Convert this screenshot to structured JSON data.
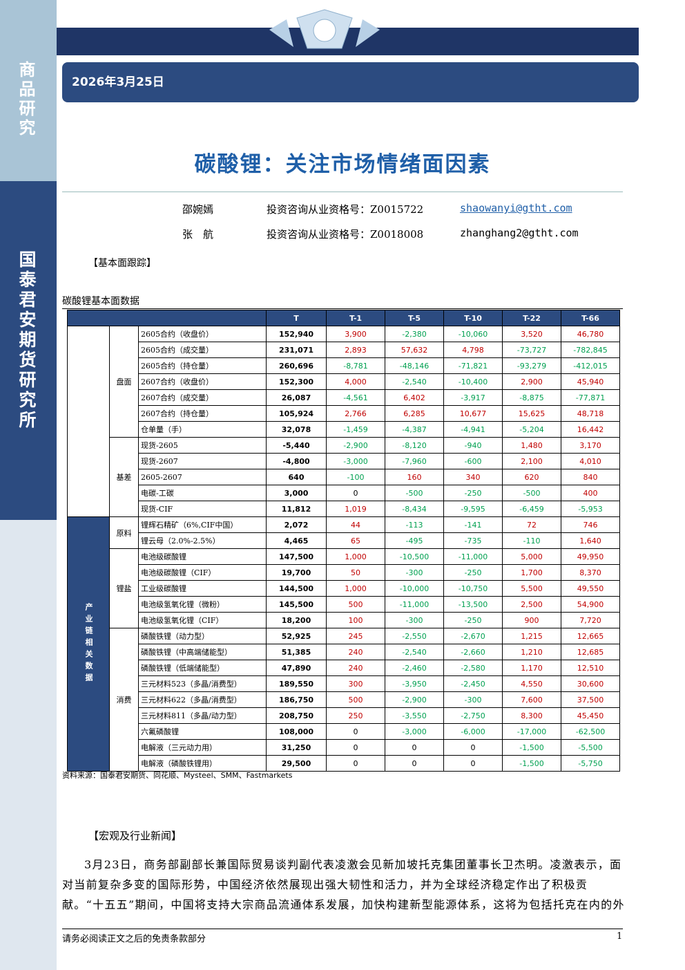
{
  "sidebar": {
    "top": "商品研究",
    "bottom": "国泰君安期货研究所"
  },
  "header": {
    "date": "2026年3月25日"
  },
  "title": "碳酸锂：关注市场情绪面因素",
  "authors": [
    {
      "name": "邵婉嫣",
      "license": "投资咨询从业资格号：Z0015722",
      "email": "shaowanyi@gtht.com"
    },
    {
      "name": "张　航",
      "license": "投资咨询从业资格号：Z0018008",
      "email": "zhanghang2@gtht.com"
    }
  ],
  "section1": "【基本面跟踪】",
  "table": {
    "caption": "碳酸锂基本面数据",
    "columns": [
      "T",
      "T-1",
      "T-5",
      "T-10",
      "T-22",
      "T-66"
    ],
    "sections": [
      {
        "groups": [
          {
            "label": "盘面",
            "rows": [
              [
                "2605合约（收盘价）",
                "152,940",
                "3,900",
                "-2,380",
                "-10,060",
                "3,520",
                "46,780"
              ],
              [
                "2605合约（成交量）",
                "231,071",
                "2,893",
                "57,632",
                "4,798",
                "-73,727",
                "-782,845"
              ],
              [
                "2605合约（持仓量）",
                "260,696",
                "-8,781",
                "-48,146",
                "-71,821",
                "-93,279",
                "-412,015"
              ],
              [
                "2607合约（收盘价）",
                "152,300",
                "4,000",
                "-2,540",
                "-10,400",
                "2,900",
                "45,940"
              ],
              [
                "2607合约（成交量）",
                "26,087",
                "-4,561",
                "6,402",
                "-3,917",
                "-8,875",
                "-77,871"
              ],
              [
                "2607合约（持仓量）",
                "105,924",
                "2,766",
                "6,285",
                "10,677",
                "15,625",
                "48,718"
              ],
              [
                "仓单量（手）",
                "32,078",
                "-1,459",
                "-4,387",
                "-4,941",
                "-5,204",
                "16,442"
              ]
            ]
          },
          {
            "label": "基差",
            "rows": [
              [
                "现货-2605",
                "-5,440",
                "-2,900",
                "-8,120",
                "-940",
                "1,480",
                "3,170"
              ],
              [
                "现货-2607",
                "-4,800",
                "-3,000",
                "-7,960",
                "-600",
                "2,100",
                "4,010"
              ],
              [
                "2605-2607",
                "640",
                "-100",
                "160",
                "340",
                "620",
                "840"
              ],
              [
                "电碳-工碳",
                "3,000",
                "0",
                "-500",
                "-250",
                "-500",
                "400"
              ],
              [
                "现货-CIF",
                "11,812",
                "1,019",
                "-8,434",
                "-9,595",
                "-6,459",
                "-5,953"
              ]
            ]
          }
        ]
      },
      {
        "label": "产业链相关数据",
        "groups": [
          {
            "label": "原料",
            "rows": [
              [
                "锂辉石精矿（6%,CIF中国）",
                "2,072",
                "44",
                "-113",
                "-141",
                "72",
                "746"
              ],
              [
                "锂云母（2.0%-2.5%）",
                "4,465",
                "65",
                "-495",
                "-735",
                "-110",
                "1,640"
              ]
            ]
          },
          {
            "label": "锂盐",
            "rows": [
              [
                "电池级碳酸锂",
                "147,500",
                "1,000",
                "-10,500",
                "-11,000",
                "5,000",
                "49,950"
              ],
              [
                "电池级碳酸锂（CIF）",
                "19,700",
                "50",
                "-300",
                "-250",
                "1,700",
                "8,370"
              ],
              [
                "工业级碳酸锂",
                "144,500",
                "1,000",
                "-10,000",
                "-10,750",
                "5,500",
                "49,550"
              ],
              [
                "电池级氢氧化锂（微粉）",
                "145,500",
                "500",
                "-11,000",
                "-13,500",
                "2,500",
                "54,900"
              ],
              [
                "电池级氢氧化锂（CIF）",
                "18,200",
                "100",
                "-300",
                "-250",
                "900",
                "7,720"
              ]
            ]
          },
          {
            "label": "消费",
            "rows": [
              [
                "磷酸铁锂（动力型）",
                "52,925",
                "245",
                "-2,550",
                "-2,670",
                "1,215",
                "12,665"
              ],
              [
                "磷酸铁锂（中高端储能型）",
                "51,385",
                "240",
                "-2,540",
                "-2,660",
                "1,210",
                "12,685"
              ],
              [
                "磷酸铁锂（低端储能型）",
                "47,890",
                "240",
                "-2,460",
                "-2,580",
                "1,170",
                "12,510"
              ],
              [
                "三元材料523（多晶/消费型）",
                "189,550",
                "300",
                "-3,950",
                "-2,450",
                "4,550",
                "30,600"
              ],
              [
                "三元材料622（多晶/消费型）",
                "186,750",
                "500",
                "-2,900",
                "-300",
                "7,600",
                "37,500"
              ],
              [
                "三元材料811（多晶/动力型）",
                "208,750",
                "250",
                "-3,550",
                "-2,750",
                "8,300",
                "45,450"
              ],
              [
                "六氟磷酸锂",
                "108,000",
                "0",
                "-3,000",
                "-6,000",
                "-17,000",
                "-62,500"
              ],
              [
                "电解液（三元动力用）",
                "31,250",
                "0",
                "0",
                "0",
                "-1,500",
                "-5,500"
              ],
              [
                "电解液（磷酸铁锂用）",
                "29,500",
                "0",
                "0",
                "0",
                "-1,500",
                "-5,750"
              ]
            ]
          }
        ]
      }
    ]
  },
  "source": "资料来源：国泰君安期货、同花顺、Mysteel、SMM、Fastmarkets",
  "section2": "【宏观及行业新闻】",
  "paragraph": "3月23日，商务部副部长兼国际贸易谈判副代表凌激会见新加坡托克集团董事长卫杰明。凌激表示，面对当前复杂多变的国际形势，中国经济依然展现出强大韧性和活力，并为全球经济稳定作出了积极贡献。“十五五”期间，中国将支持大宗商品流通体系发展，加快构建新型能源体系，这将为包括托克在内的外",
  "footer": {
    "note": "请务必阅读正文之后的免责条款部分",
    "page": "1"
  }
}
